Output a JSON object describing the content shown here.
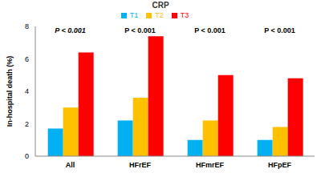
{
  "chart_data": {
    "type": "bar",
    "title": "CRP",
    "categories": [
      "All",
      "HFrEF",
      "HFmrEF",
      "HFpEF"
    ],
    "series": [
      {
        "name": "T1",
        "color": "#00b0f0",
        "values": [
          1.7,
          2.2,
          1.0,
          1.0
        ]
      },
      {
        "name": "T2",
        "color": "#ffc000",
        "values": [
          3.0,
          3.6,
          2.2,
          1.8
        ]
      },
      {
        "name": "T3",
        "color": "#ff0000",
        "values": [
          6.4,
          7.4,
          5.0,
          4.8
        ]
      }
    ],
    "y_label": "In-hospital death (%)",
    "ylim": [
      0,
      8
    ],
    "yticks": [
      0,
      2,
      4,
      6,
      8
    ],
    "annotations": [
      "P < 0.001",
      "P < 0.001",
      "P < 0.001",
      "P < 0.001"
    ],
    "legend": "top",
    "grid": false
  }
}
